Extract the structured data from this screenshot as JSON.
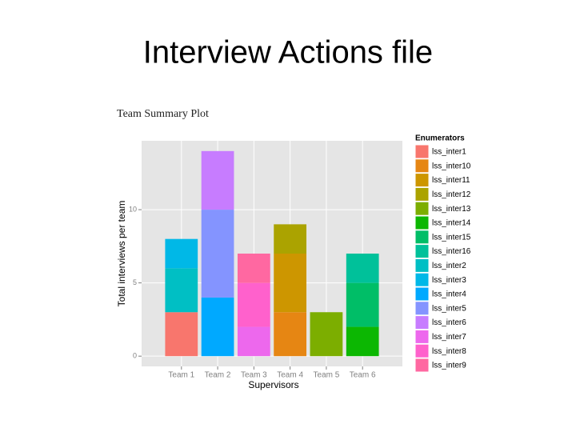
{
  "slide_title": "Interview Actions file",
  "chart_data": {
    "type": "stacked_bar",
    "title": "Team Summary Plot",
    "x_label": "Supervisors",
    "y_label": "Total interviews per team",
    "legend_title": "Enumerators",
    "legend_position": "right",
    "grid": true,
    "categories": [
      "Team 1",
      "Team 2",
      "Team 3",
      "Team 4",
      "Team 5",
      "Team 6"
    ],
    "ylim": [
      -0.7,
      14.7
    ],
    "yticks": [
      0,
      5,
      10
    ],
    "series": [
      {
        "name": "lss_inter1",
        "color": "#F8766D",
        "values": [
          3,
          null,
          null,
          null,
          null,
          null
        ]
      },
      {
        "name": "lss_inter10",
        "color": "#E68613",
        "values": [
          null,
          null,
          null,
          3,
          null,
          null
        ]
      },
      {
        "name": "lss_inter11",
        "color": "#CD9600",
        "values": [
          null,
          null,
          null,
          4,
          null,
          null
        ]
      },
      {
        "name": "lss_inter12",
        "color": "#ABA300",
        "values": [
          null,
          null,
          null,
          2,
          null,
          null
        ]
      },
      {
        "name": "lss_inter13",
        "color": "#7CAE00",
        "values": [
          null,
          null,
          null,
          null,
          3,
          null
        ]
      },
      {
        "name": "lss_inter14",
        "color": "#0CB702",
        "values": [
          null,
          null,
          null,
          null,
          null,
          2
        ]
      },
      {
        "name": "lss_inter15",
        "color": "#00BE67",
        "values": [
          null,
          null,
          null,
          null,
          null,
          3
        ]
      },
      {
        "name": "lss_inter16",
        "color": "#00C19A",
        "values": [
          null,
          null,
          null,
          null,
          null,
          2
        ]
      },
      {
        "name": "lss_inter2",
        "color": "#00BFC4",
        "values": [
          3,
          null,
          null,
          null,
          null,
          null
        ]
      },
      {
        "name": "lss_inter3",
        "color": "#00B8E7",
        "values": [
          2,
          null,
          null,
          null,
          null,
          null
        ]
      },
      {
        "name": "lss_inter4",
        "color": "#00A9FF",
        "values": [
          null,
          4,
          null,
          null,
          null,
          null
        ]
      },
      {
        "name": "lss_inter5",
        "color": "#8494FF",
        "values": [
          null,
          6,
          null,
          null,
          null,
          null
        ]
      },
      {
        "name": "lss_inter6",
        "color": "#C77CFF",
        "values": [
          null,
          4,
          null,
          null,
          null,
          null
        ]
      },
      {
        "name": "lss_inter7",
        "color": "#ED68ED",
        "values": [
          null,
          null,
          2,
          null,
          null,
          null
        ]
      },
      {
        "name": "lss_inter8",
        "color": "#FF61CC",
        "values": [
          null,
          null,
          3,
          null,
          null,
          null
        ]
      },
      {
        "name": "lss_inter9",
        "color": "#FF68A1",
        "values": [
          null,
          null,
          2,
          null,
          null,
          null
        ]
      }
    ]
  }
}
